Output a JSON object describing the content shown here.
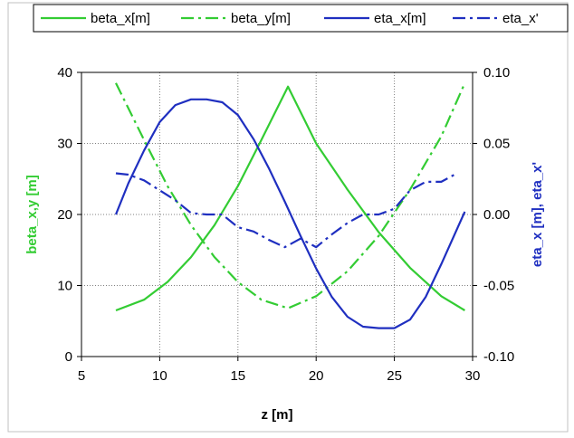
{
  "chart_data": {
    "type": "line",
    "title": "",
    "xlabel": "z [m]",
    "ylabel": "beta_x,y [m]",
    "y2label": "eta_x [m], eta_x'",
    "xlim": [
      5,
      30
    ],
    "ylim": [
      0,
      40
    ],
    "y2lim": [
      -0.1,
      0.1
    ],
    "x_ticks": [
      "5",
      "10",
      "15",
      "20",
      "25",
      "30"
    ],
    "y_ticks": [
      "0",
      "10",
      "20",
      "30",
      "40"
    ],
    "y2_ticks": [
      "-0.10",
      "-0.05",
      "0.00",
      "0.05",
      "0.10"
    ],
    "grid": true,
    "legend_position": "top",
    "series": [
      {
        "name": "beta_x[m]",
        "axis": "left",
        "color": "#33cc33",
        "dash": "solid",
        "x": [
          7.2,
          9,
          10.5,
          12,
          13.5,
          15,
          16.5,
          18.2,
          20,
          22,
          24,
          26,
          28,
          29.5
        ],
        "y": [
          6.5,
          8,
          10.5,
          14,
          18.5,
          24,
          30.5,
          38,
          30,
          23.5,
          17.5,
          12.5,
          8.5,
          6.5
        ]
      },
      {
        "name": "beta_y[m]",
        "axis": "left",
        "color": "#33cc33",
        "dash": "dashdot",
        "x": [
          7.2,
          9,
          10.5,
          12,
          13.5,
          15,
          16.5,
          18.2,
          20,
          22,
          24,
          26,
          28,
          29.5
        ],
        "y": [
          38.5,
          30.5,
          24,
          18.5,
          14,
          10.5,
          8,
          6.8,
          8.5,
          12,
          17,
          23.5,
          31,
          38.5
        ]
      },
      {
        "name": "eta_x[m]",
        "axis": "right",
        "color": "#1f2fc0",
        "dash": "solid",
        "x": [
          7.2,
          8,
          9,
          10,
          11,
          12,
          13,
          14,
          15,
          16,
          17,
          18,
          19,
          20,
          21,
          22,
          23,
          24,
          25,
          26,
          27,
          28,
          29.5
        ],
        "y": [
          0.0,
          0.022,
          0.045,
          0.065,
          0.077,
          0.081,
          0.081,
          0.079,
          0.07,
          0.053,
          0.032,
          0.009,
          -0.015,
          -0.038,
          -0.058,
          -0.072,
          -0.079,
          -0.08,
          -0.08,
          -0.074,
          -0.058,
          -0.035,
          0.002
        ]
      },
      {
        "name": "eta_x'",
        "axis": "right",
        "color": "#1f2fc0",
        "dash": "dashdot",
        "x": [
          7.2,
          8,
          9,
          10,
          11,
          12,
          13,
          14,
          15,
          16,
          17,
          18,
          19,
          20,
          21,
          22,
          23,
          24,
          25,
          26,
          27,
          28,
          29
        ],
        "y": [
          0.029,
          0.028,
          0.024,
          0.017,
          0.01,
          0.001,
          0.0,
          0.0,
          -0.009,
          -0.012,
          -0.018,
          -0.023,
          -0.017,
          -0.023,
          -0.014,
          -0.006,
          0.0,
          0.0,
          0.004,
          0.017,
          0.023,
          0.023,
          0.029
        ]
      }
    ]
  }
}
